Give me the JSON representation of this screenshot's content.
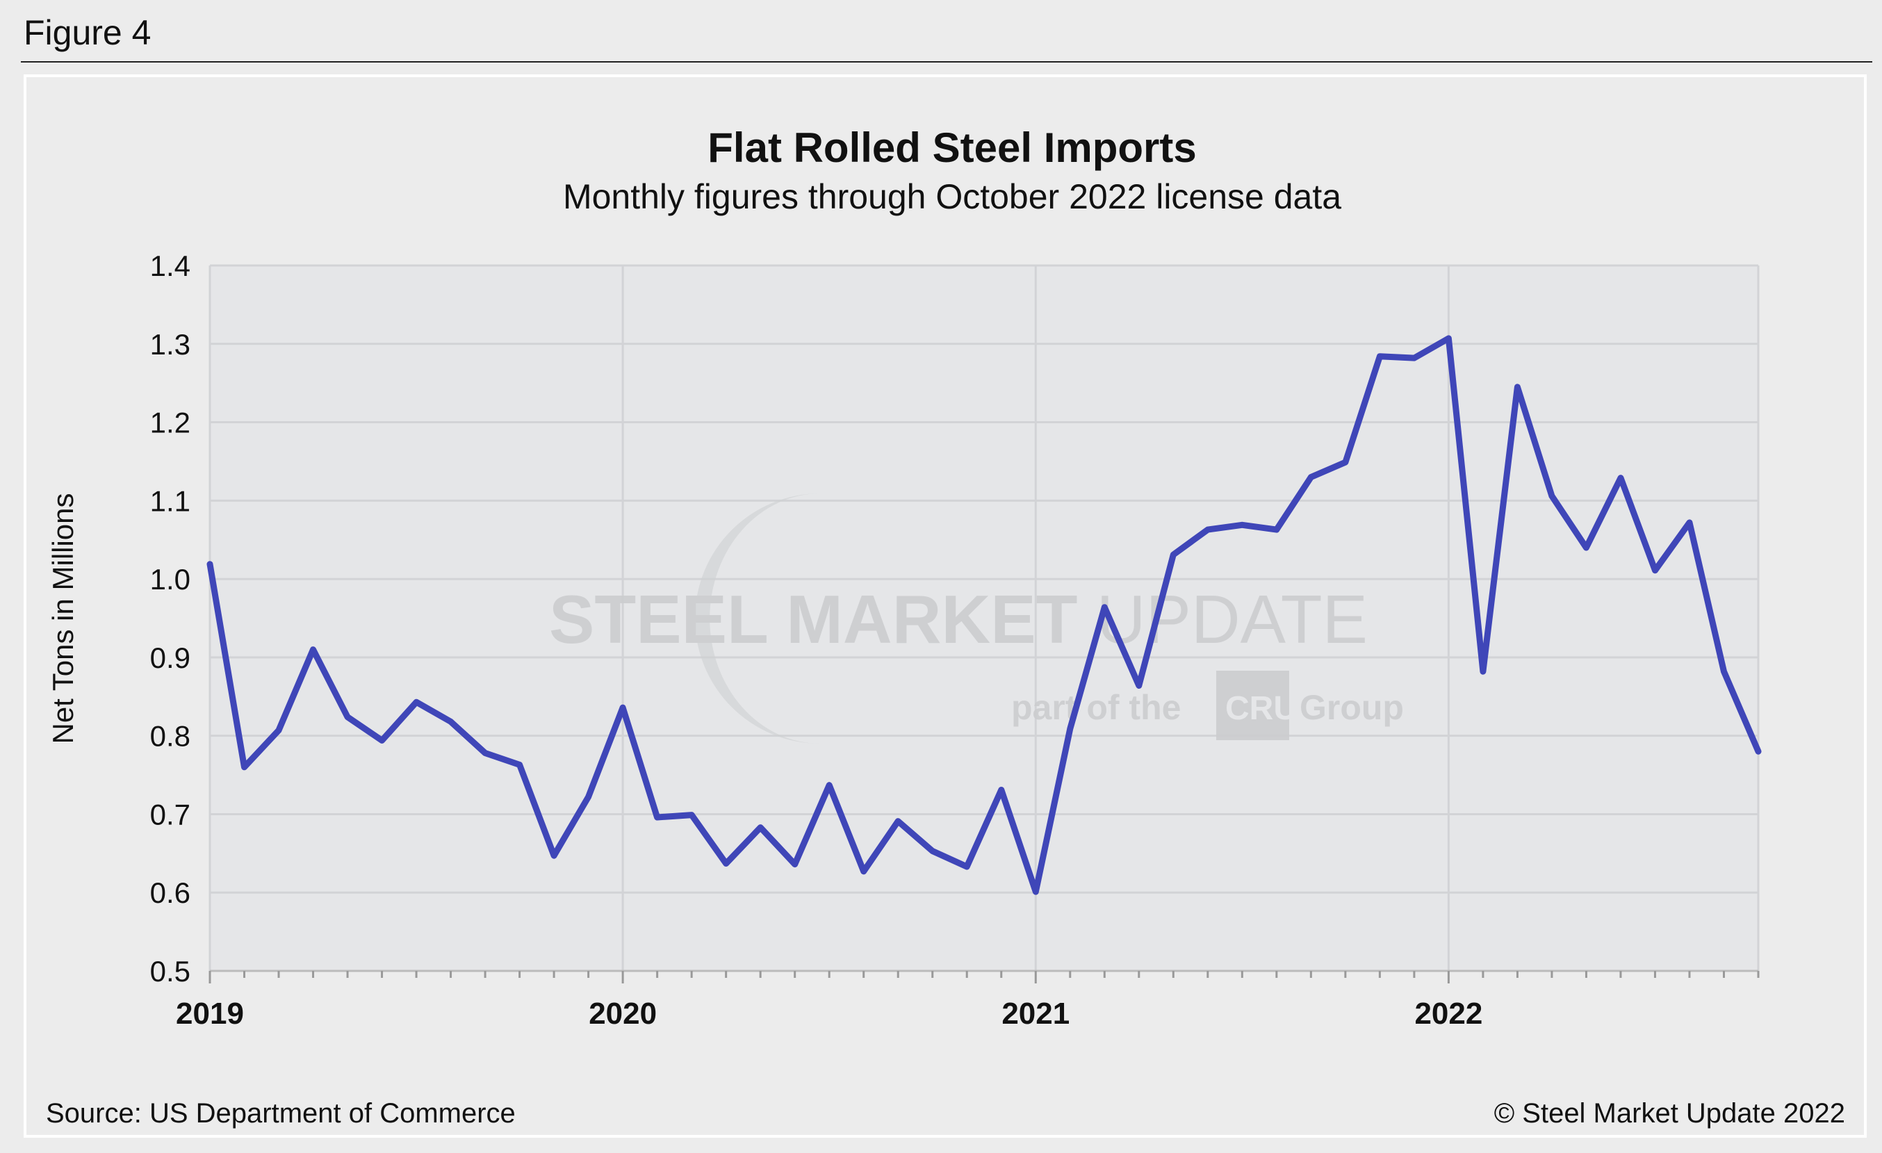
{
  "figure_label": "Figure 4",
  "source": "Source: US Department of Commerce",
  "copyright": "© Steel Market Update 2022",
  "watermark": {
    "line1a": "STEEL",
    "line1b": "MARKET",
    "line1c": "UPDATE",
    "line2a": "part of the",
    "line2b": "CRU",
    "line2c": "Group"
  },
  "colors": {
    "line": "#3f46b8",
    "plot_bg": "#e5e6e8",
    "grid": "#d2d3d6"
  },
  "chart_data": {
    "type": "line",
    "title": "Flat Rolled Steel Imports",
    "subtitle": "Monthly figures through October 2022 license data",
    "xlabel": "",
    "ylabel": "Net Tons in Millions",
    "ylim": [
      0.5,
      1.4
    ],
    "yticks": [
      "0.5",
      "0.6",
      "0.7",
      "0.8",
      "0.9",
      "1.0",
      "1.1",
      "1.2",
      "1.3",
      "1.4"
    ],
    "xticks": [
      "2019",
      "2020",
      "2021",
      "2022"
    ],
    "grid": true,
    "x": [
      "2019-01",
      "2019-02",
      "2019-03",
      "2019-04",
      "2019-05",
      "2019-06",
      "2019-07",
      "2019-08",
      "2019-09",
      "2019-10",
      "2019-11",
      "2019-12",
      "2020-01",
      "2020-02",
      "2020-03",
      "2020-04",
      "2020-05",
      "2020-06",
      "2020-07",
      "2020-08",
      "2020-09",
      "2020-10",
      "2020-11",
      "2020-12",
      "2021-01",
      "2021-02",
      "2021-03",
      "2021-04",
      "2021-05",
      "2021-06",
      "2021-07",
      "2021-08",
      "2021-09",
      "2021-10",
      "2021-11",
      "2021-12",
      "2022-01",
      "2022-02",
      "2022-03",
      "2022-04",
      "2022-05",
      "2022-06",
      "2022-07",
      "2022-08",
      "2022-09",
      "2022-10"
    ],
    "values": [
      1.019,
      0.76,
      0.807,
      0.91,
      0.824,
      0.794,
      0.843,
      0.818,
      0.778,
      0.763,
      0.647,
      0.722,
      0.836,
      0.696,
      0.699,
      0.637,
      0.683,
      0.636,
      0.737,
      0.627,
      0.691,
      0.653,
      0.633,
      0.731,
      0.601,
      0.809,
      0.964,
      0.864,
      1.031,
      1.063,
      1.069,
      1.063,
      1.13,
      1.149,
      1.284,
      1.282,
      1.307,
      0.882,
      1.245,
      1.106,
      1.04,
      1.129,
      1.011,
      1.072,
      0.882,
      0.78
    ]
  }
}
